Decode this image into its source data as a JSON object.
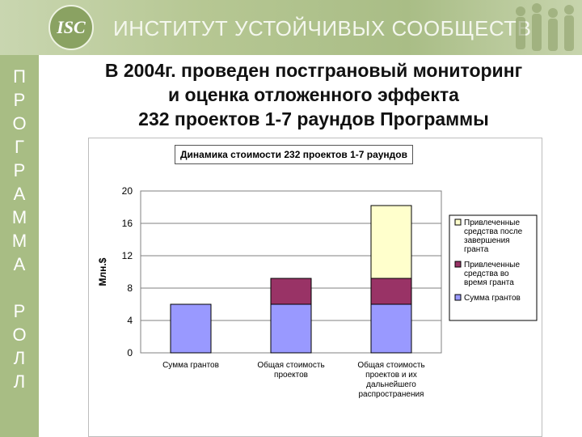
{
  "header": {
    "logo_text": "ISC",
    "title": "ИНСТИТУТ УСТОЙЧИВЫХ СООБЩЕСТВ"
  },
  "sidebar": {
    "letters": [
      "П",
      "Р",
      "О",
      "Г",
      "Р",
      "А",
      "М",
      "М",
      "А",
      "",
      "Р",
      "О",
      "Л",
      "Л"
    ]
  },
  "slide": {
    "heading_lines": [
      "В 2004г. проведен постграновый мониторинг",
      "и оценка отложенного эффекта",
      "232 проектов 1-7 раундов Программы"
    ]
  },
  "colors": {
    "grants": "#9999ff",
    "attracted_during": "#993366",
    "attracted_after": "#ffffcc",
    "banner": "#b6c793",
    "sidebar": "#a8bd84"
  },
  "chart_data": {
    "type": "bar",
    "stacked": true,
    "title": "Динамика стоимости 232 проектов  1-7 раундов",
    "ylabel": "Млн.$",
    "xlabel": "",
    "ylim": [
      0,
      20
    ],
    "yticks": [
      0,
      4,
      8,
      12,
      16,
      20
    ],
    "grid": "horizontal",
    "legend_position": "right",
    "categories": [
      [
        "Сумма грантов"
      ],
      [
        "Общая стоимость",
        "проектов"
      ],
      [
        "Общая стоимость",
        "проектов и их",
        "дальнейшего",
        "распространения"
      ]
    ],
    "series": [
      {
        "name": "Сумма грантов",
        "values": [
          6,
          6,
          6
        ]
      },
      {
        "name": "Привлеченные средства во время гранта",
        "legend_lines": [
          "Привлеченные",
          "средства во",
          "время гранта"
        ],
        "values": [
          0,
          3.2,
          3.2
        ]
      },
      {
        "name": "Привлеченные средства после завершения гранта",
        "legend_lines": [
          "Привлеченные",
          "средства после",
          "завершения",
          "гранта"
        ],
        "values": [
          0,
          0,
          9
        ]
      }
    ]
  }
}
